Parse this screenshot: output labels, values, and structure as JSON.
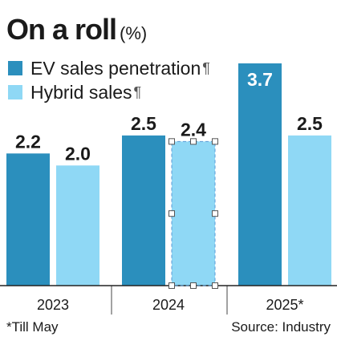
{
  "title": "On a roll",
  "unit": "(%)",
  "legend": [
    {
      "label": "EV sales penetration",
      "color": "#2b8fbd"
    },
    {
      "label": "Hybrid sales",
      "color": "#8fd8f5"
    }
  ],
  "footnote": "*Till May",
  "source": "Source: Industry",
  "chart_data": {
    "type": "bar",
    "categories": [
      "2023",
      "2024",
      "2025*"
    ],
    "series": [
      {
        "name": "EV sales penetration",
        "values": [
          2.2,
          2.5,
          3.7
        ],
        "color": "#2b8fbd"
      },
      {
        "name": "Hybrid sales",
        "values": [
          2.0,
          2.4,
          2.5
        ],
        "color": "#8fd8f5"
      }
    ],
    "ylim": [
      0,
      3.7
    ],
    "grid": false,
    "legend_position": "top-left",
    "data_labels": true
  }
}
